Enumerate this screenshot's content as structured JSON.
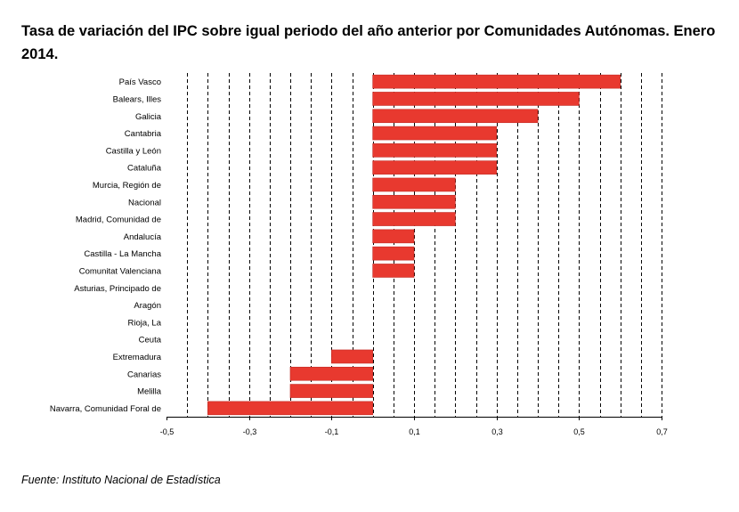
{
  "chart_data": {
    "type": "bar",
    "orientation": "horizontal",
    "title": "Tasa de variación del IPC sobre igual periodo del año anterior por Comunidades Autónomas. Enero 2014.",
    "source": "Fuente: Instituto Nacional de Estadística",
    "categories": [
      "País Vasco",
      "Balears, Illes",
      "Galicia",
      "Cantabria",
      "Castilla y León",
      "Cataluña",
      "Murcia, Región de",
      "Nacional",
      "Madrid, Comunidad de",
      "Andalucía",
      "Castilla - La Mancha",
      "Comunitat Valenciana",
      "Asturias, Principado de",
      "Aragón",
      "Rioja, La",
      "Ceuta",
      "Extremadura",
      "Canarias",
      "Melilla",
      "Navarra, Comunidad Foral de"
    ],
    "values": [
      0.6,
      0.5,
      0.4,
      0.3,
      0.3,
      0.3,
      0.2,
      0.2,
      0.2,
      0.1,
      0.1,
      0.1,
      0.0,
      0.0,
      0.0,
      0.0,
      -0.1,
      -0.2,
      -0.2,
      -0.4
    ],
    "xlim": [
      -0.5,
      0.7
    ],
    "x_tick_labels": [
      "-0,5",
      "-0,3",
      "-0,1",
      "0,1",
      "0,3",
      "0,5",
      "0,7"
    ],
    "x_tick_values": [
      -0.5,
      -0.3,
      -0.1,
      0.1,
      0.3,
      0.5,
      0.7
    ],
    "gridline_step": 0.05,
    "grid": "vertical dashed",
    "bar_color": "#e8392f",
    "bar_edge_color": "#c22a22"
  }
}
